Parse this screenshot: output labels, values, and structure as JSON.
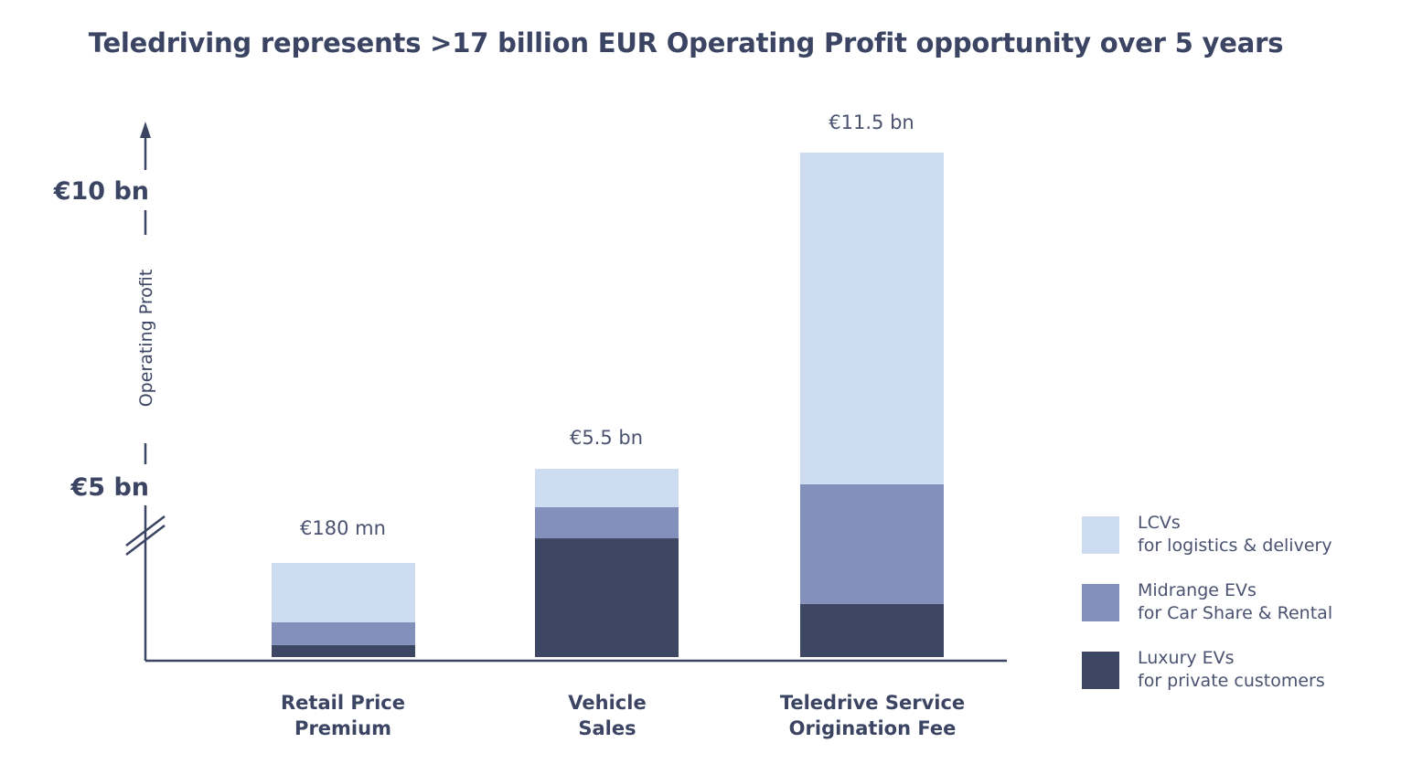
{
  "chart_data": {
    "type": "bar",
    "stacked": true,
    "title": "Teledriving represents >17 billion EUR Operating Profit opportunity over 5 years",
    "xlabel": "",
    "ylabel": "Operating Profit",
    "y_ticks": [
      {
        "value": 5,
        "label": "€5 bn"
      },
      {
        "value": 10,
        "label": "€10 bn"
      }
    ],
    "y_axis_break": true,
    "categories": [
      {
        "line1": "Retail Price",
        "line2": "Premium"
      },
      {
        "line1": "Vehicle",
        "line2": "Sales"
      },
      {
        "line1": "Teledrive Service",
        "line2": "Origination Fee"
      }
    ],
    "totals": [
      0.18,
      5.5,
      11.5
    ],
    "total_labels": [
      "€180 mn",
      "€5.5 bn",
      "€11.5 bn"
    ],
    "unit": "billion EUR",
    "series": [
      {
        "name": "Luxury EVs",
        "subtitle": "for private customers",
        "color": "#3d4663",
        "values": [
          0.023,
          3.47,
          1.21
        ]
      },
      {
        "name": "Midrange EVs",
        "subtitle": "for Car Share & Rental",
        "color": "#8290bb",
        "values": [
          0.044,
          0.91,
          2.73
        ]
      },
      {
        "name": "LCVs",
        "subtitle": "for logistics & delivery",
        "color": "#cddcf0",
        "values": [
          0.114,
          1.12,
          7.56
        ]
      }
    ],
    "legend_position": "right",
    "grid": false
  },
  "legend": [
    {
      "title": "LCVs",
      "subtitle": "for logistics & delivery",
      "color": "#cddcf0"
    },
    {
      "title": "Midrange EVs",
      "subtitle": "for Car Share & Rental",
      "color": "#8290bb"
    },
    {
      "title": "Luxury EVs",
      "subtitle": "for private customers",
      "color": "#3d4663"
    }
  ]
}
